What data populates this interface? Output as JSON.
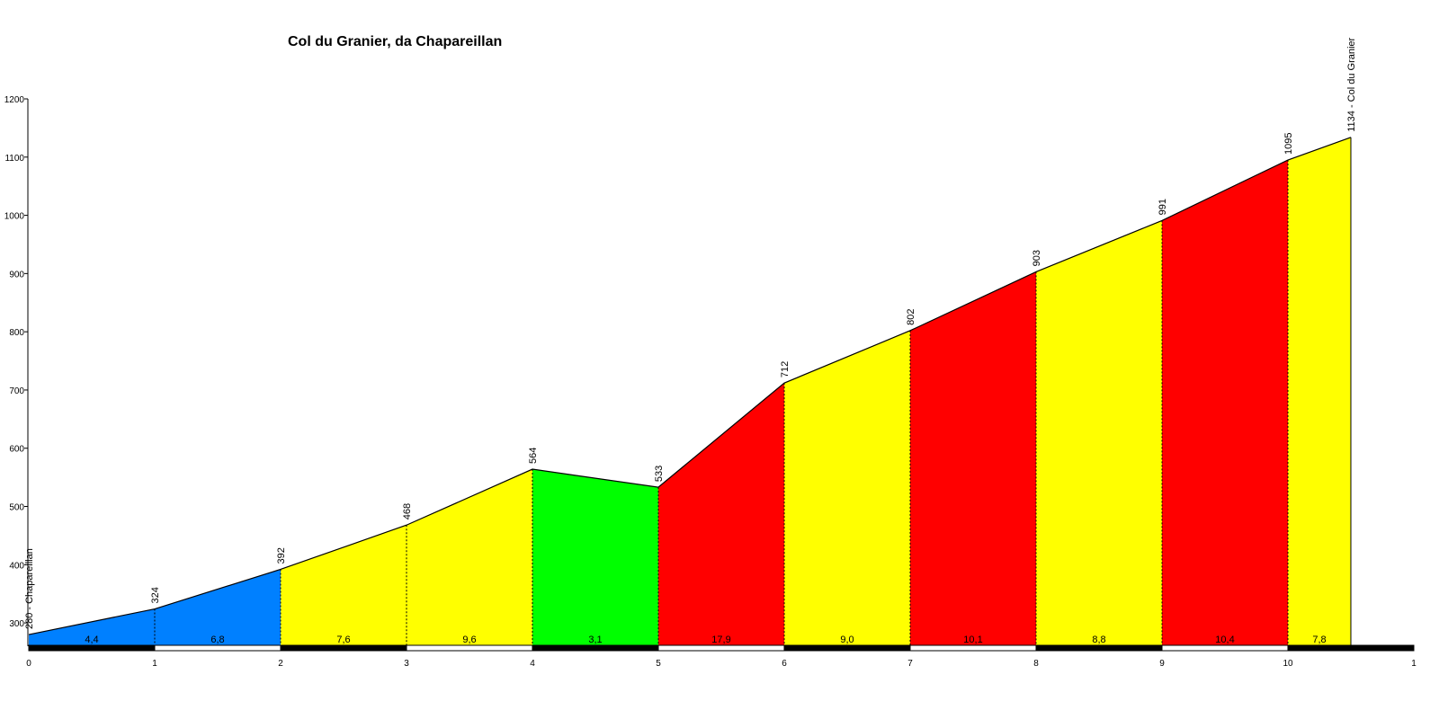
{
  "chart_data": {
    "type": "area",
    "title": "Col du Granier, da Chapareillan",
    "xlabel": "",
    "ylabel": "",
    "xlim": [
      0,
      11
    ],
    "ylim": [
      260,
      1200
    ],
    "x_ticks": [
      "0",
      "1",
      "2",
      "3",
      "4",
      "5",
      "6",
      "7",
      "8",
      "9",
      "10",
      "1"
    ],
    "y_ticks": [
      300,
      400,
      500,
      600,
      700,
      800,
      900,
      1000,
      1100,
      1200
    ],
    "points": [
      {
        "x": 0,
        "y": 280,
        "label": "280 - Chapareillan"
      },
      {
        "x": 1,
        "y": 324,
        "label": "324"
      },
      {
        "x": 2,
        "y": 392,
        "label": "392"
      },
      {
        "x": 3,
        "y": 468,
        "label": "468"
      },
      {
        "x": 4,
        "y": 564,
        "label": "564"
      },
      {
        "x": 5,
        "y": 533,
        "label": "533"
      },
      {
        "x": 6,
        "y": 712,
        "label": "712"
      },
      {
        "x": 7,
        "y": 802,
        "label": "802"
      },
      {
        "x": 8,
        "y": 903,
        "label": "903"
      },
      {
        "x": 9,
        "y": 991,
        "label": "991"
      },
      {
        "x": 10,
        "y": 1095,
        "label": "1095"
      },
      {
        "x": 10.5,
        "y": 1134,
        "label": "1134 - Col du Granier"
      }
    ],
    "segments": [
      {
        "grade": "4,4",
        "color": "#0080ff"
      },
      {
        "grade": "6,8",
        "color": "#0080ff"
      },
      {
        "grade": "7,6",
        "color": "#ffff00"
      },
      {
        "grade": "9,6",
        "color": "#ffff00"
      },
      {
        "grade": "3,1",
        "color": "#00ff00"
      },
      {
        "grade": "17,9",
        "color": "#ff0000"
      },
      {
        "grade": "9,0",
        "color": "#ffff00"
      },
      {
        "grade": "10,1",
        "color": "#ff0000"
      },
      {
        "grade": "8,8",
        "color": "#ffff00"
      },
      {
        "grade": "10,4",
        "color": "#ff0000"
      },
      {
        "grade": "7,8",
        "color": "#ffff00"
      }
    ],
    "grid": false,
    "legend": "none"
  }
}
